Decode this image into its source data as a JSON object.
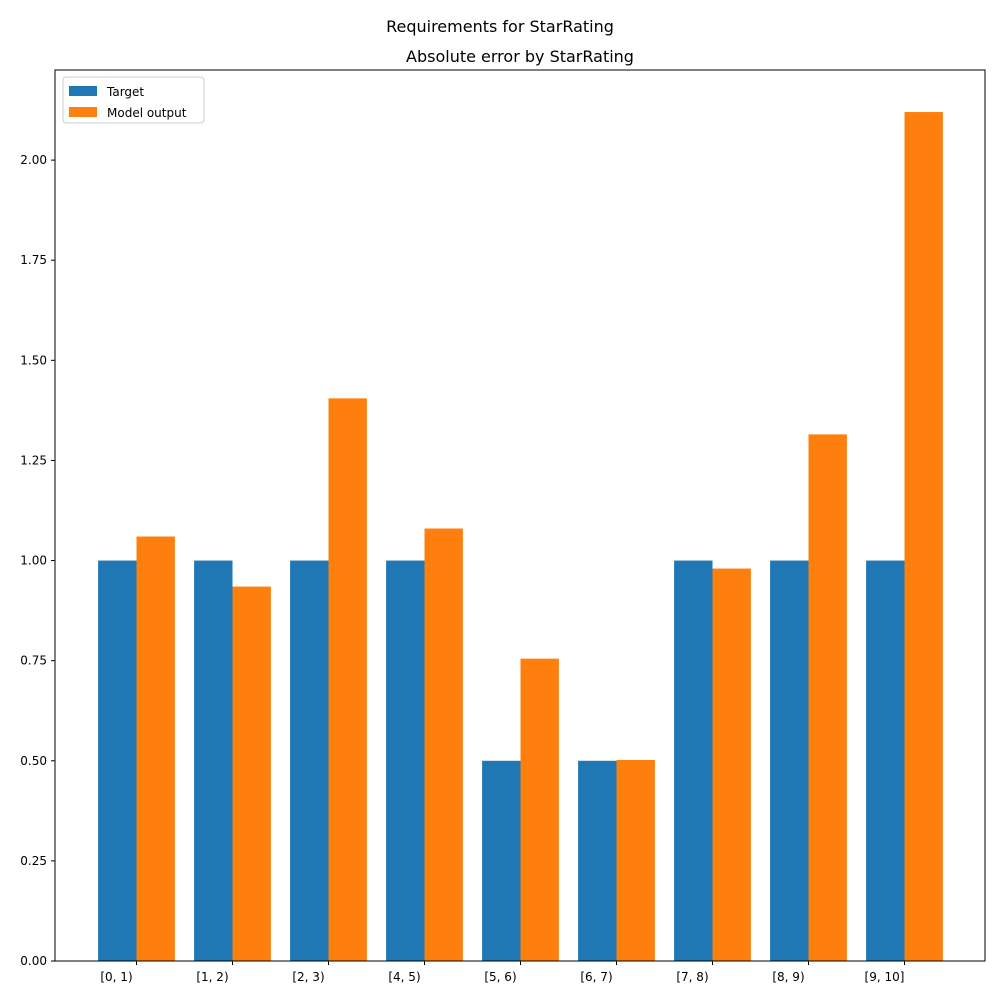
{
  "figure": {
    "suptitle": "Requirements for StarRating"
  },
  "chart_data": {
    "type": "bar",
    "title": "Absolute error by StarRating",
    "xlabel": "",
    "ylabel": "",
    "categories": [
      "[0, 1)",
      "[1, 2)",
      "[2, 3)",
      "[4, 5)",
      "[5, 6)",
      "[6, 7)",
      "[7, 8)",
      "[8, 9)",
      "[9, 10]"
    ],
    "series": [
      {
        "name": "Target",
        "color": "#1f77b4",
        "values": [
          1.0,
          1.0,
          1.0,
          1.0,
          0.5,
          0.5,
          1.0,
          1.0,
          1.0
        ]
      },
      {
        "name": "Model output",
        "color": "#ff7f0e",
        "values": [
          1.06,
          0.935,
          1.405,
          1.08,
          0.755,
          0.502,
          0.98,
          1.315,
          2.12
        ]
      }
    ],
    "ylim": [
      0,
      2.225
    ],
    "yticks": [
      "0.00",
      "0.25",
      "0.50",
      "0.75",
      "1.00",
      "1.25",
      "1.50",
      "1.75",
      "2.00"
    ],
    "legend_position": "top-left",
    "grid": false
  }
}
